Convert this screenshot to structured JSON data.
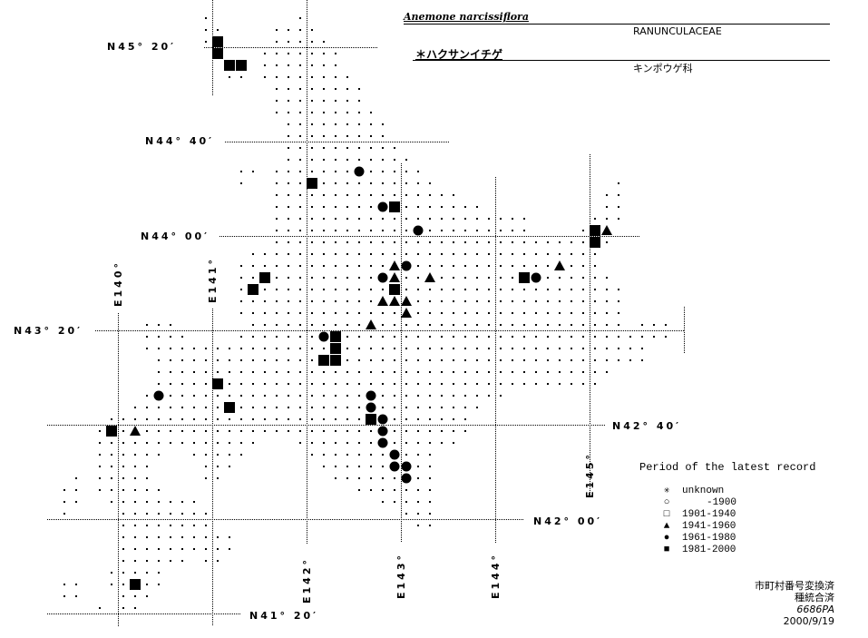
{
  "header": {
    "scientific_name": "Anemone narcissiflora",
    "family_latin": "RANUNCULACEAE",
    "japanese_name": "＊ハクサンイチゲ",
    "family_japanese": "キンポウゲ科"
  },
  "graticule": {
    "latitudes": [
      {
        "value": 45.3333,
        "label": "N45° 20′"
      },
      {
        "value": 44.6667,
        "label": "N44° 40′"
      },
      {
        "value": 44.0,
        "label": "N44° 00′"
      },
      {
        "value": 43.3333,
        "label": "N43° 20′"
      },
      {
        "value": 42.6667,
        "label": "N42° 40′"
      },
      {
        "value": 42.0,
        "label": "N42° 00′"
      },
      {
        "value": 41.3333,
        "label": "N41° 20′"
      }
    ],
    "longitudes": [
      {
        "value": 140,
        "label": "E140°"
      },
      {
        "value": 141,
        "label": "E141°"
      },
      {
        "value": 142,
        "label": "E142°"
      },
      {
        "value": 143,
        "label": "E143°"
      },
      {
        "value": 144,
        "label": "E144°"
      },
      {
        "value": 145,
        "label": "E145°"
      }
    ]
  },
  "legend": {
    "title": "Period of the latest record",
    "items": [
      {
        "symbol": "asterisk",
        "glyph": "✳",
        "label": "unknown"
      },
      {
        "symbol": "open-circle",
        "glyph": "○",
        "label": "-1900"
      },
      {
        "symbol": "open-square",
        "glyph": "□",
        "label": "1901-1940"
      },
      {
        "symbol": "filled-triangle",
        "glyph": "▲",
        "label": "1941-1960"
      },
      {
        "symbol": "filled-circle",
        "glyph": "●",
        "label": "1961-1980"
      },
      {
        "symbol": "filled-square",
        "glyph": "■",
        "label": "1981-2000"
      }
    ]
  },
  "footer": {
    "line1": "市町村番号変換済",
    "line2": "種統合済",
    "line3": "6686PA",
    "line4": "2000/9/19"
  },
  "chart_data": {
    "type": "scatter",
    "x_unit": "longitude (°E)",
    "y_unit": "latitude (°N)",
    "grid_mesh": [
      {
        "lat": 45.5417,
        "lon": [
          [
            140.9375,
            140.9375
          ],
          [
            141.9375,
            141.9375
          ]
        ]
      },
      {
        "lat": 45.4583,
        "lon": [
          [
            140.9375,
            141.0625
          ],
          [
            141.6875,
            142.0625
          ]
        ]
      },
      {
        "lat": 45.375,
        "lon": [
          [
            140.9375,
            141.0625
          ],
          [
            141.6875,
            142.1875
          ]
        ]
      },
      {
        "lat": 45.2917,
        "lon": [
          [
            141.0625,
            141.0625
          ],
          [
            141.5625,
            142.3125
          ]
        ]
      },
      {
        "lat": 45.2083,
        "lon": [
          [
            141.1875,
            141.3125
          ],
          [
            141.5625,
            142.3125
          ]
        ]
      },
      {
        "lat": 45.125,
        "lon": [
          [
            141.1875,
            141.3125
          ],
          [
            141.5625,
            142.4375
          ]
        ]
      },
      {
        "lat": 45.0417,
        "lon": [
          [
            141.6875,
            142.5625
          ]
        ]
      },
      {
        "lat": 44.9583,
        "lon": [
          [
            141.6875,
            142.5625
          ]
        ]
      },
      {
        "lat": 44.875,
        "lon": [
          [
            141.6875,
            142.6875
          ]
        ]
      },
      {
        "lat": 44.7917,
        "lon": [
          [
            141.8125,
            142.8125
          ]
        ]
      },
      {
        "lat": 44.7083,
        "lon": [
          [
            141.8125,
            142.8125
          ]
        ]
      },
      {
        "lat": 44.625,
        "lon": [
          [
            141.8125,
            142.9375
          ]
        ]
      },
      {
        "lat": 44.5417,
        "lon": [
          [
            141.8125,
            143.0625
          ]
        ]
      },
      {
        "lat": 44.4583,
        "lon": [
          [
            141.3125,
            141.4375
          ],
          [
            141.6875,
            143.1875
          ]
        ]
      },
      {
        "lat": 44.375,
        "lon": [
          [
            141.3125,
            141.3125
          ],
          [
            141.6875,
            143.3125
          ],
          [
            145.3125,
            145.3125
          ]
        ]
      },
      {
        "lat": 44.2917,
        "lon": [
          [
            141.6875,
            143.5625
          ],
          [
            145.1875,
            145.3125
          ]
        ]
      },
      {
        "lat": 44.2083,
        "lon": [
          [
            141.6875,
            143.8125
          ],
          [
            145.1875,
            145.3125
          ]
        ]
      },
      {
        "lat": 44.125,
        "lon": [
          [
            141.6875,
            144.3125
          ],
          [
            145.0625,
            145.3125
          ]
        ]
      },
      {
        "lat": 44.0417,
        "lon": [
          [
            141.6875,
            144.3125
          ],
          [
            144.9375,
            145.1875
          ]
        ]
      },
      {
        "lat": 43.9583,
        "lon": [
          [
            141.6875,
            145.1875
          ]
        ]
      },
      {
        "lat": 43.875,
        "lon": [
          [
            141.4375,
            145.0625
          ]
        ]
      },
      {
        "lat": 43.7917,
        "lon": [
          [
            141.3125,
            145.0625
          ]
        ]
      },
      {
        "lat": 43.7083,
        "lon": [
          [
            141.3125,
            145.1875
          ]
        ]
      },
      {
        "lat": 43.625,
        "lon": [
          [
            141.3125,
            145.3125
          ]
        ]
      },
      {
        "lat": 43.5417,
        "lon": [
          [
            141.3125,
            145.3125
          ]
        ]
      },
      {
        "lat": 43.4583,
        "lon": [
          [
            141.3125,
            145.3125
          ]
        ]
      },
      {
        "lat": 43.375,
        "lon": [
          [
            140.3125,
            140.5625
          ],
          [
            141.4375,
            145.3125
          ],
          [
            145.5625,
            145.8125
          ]
        ]
      },
      {
        "lat": 43.2917,
        "lon": [
          [
            140.3125,
            140.6875
          ],
          [
            141.3125,
            145.8125
          ]
        ]
      },
      {
        "lat": 43.2083,
        "lon": [
          [
            140.3125,
            145.5625
          ]
        ]
      },
      {
        "lat": 43.125,
        "lon": [
          [
            140.4375,
            145.5625
          ]
        ]
      },
      {
        "lat": 43.0417,
        "lon": [
          [
            140.4375,
            145.1875
          ]
        ]
      },
      {
        "lat": 42.9583,
        "lon": [
          [
            140.4375,
            145.0625
          ]
        ]
      },
      {
        "lat": 42.875,
        "lon": [
          [
            140.3125,
            144.0625
          ]
        ]
      },
      {
        "lat": 42.7917,
        "lon": [
          [
            140.1875,
            143.8125
          ]
        ]
      },
      {
        "lat": 42.7083,
        "lon": [
          [
            139.9375,
            143.6875
          ]
        ]
      },
      {
        "lat": 42.625,
        "lon": [
          [
            139.8125,
            143.6875
          ]
        ]
      },
      {
        "lat": 42.5417,
        "lon": [
          [
            139.8125,
            141.4375
          ],
          [
            141.9375,
            143.5625
          ]
        ]
      },
      {
        "lat": 42.4583,
        "lon": [
          [
            139.8125,
            140.4375
          ],
          [
            140.8125,
            141.3125
          ],
          [
            142.0625,
            143.3125
          ]
        ]
      },
      {
        "lat": 42.375,
        "lon": [
          [
            139.8125,
            140.3125
          ],
          [
            140.9375,
            141.1875
          ],
          [
            142.1875,
            143.3125
          ]
        ]
      },
      {
        "lat": 42.2917,
        "lon": [
          [
            139.5625,
            139.5625
          ],
          [
            139.8125,
            140.3125
          ],
          [
            140.9375,
            141.0625
          ],
          [
            142.3125,
            143.3125
          ]
        ]
      },
      {
        "lat": 42.2083,
        "lon": [
          [
            139.4375,
            139.5625
          ],
          [
            139.8125,
            140.4375
          ],
          [
            142.5625,
            143.3125
          ]
        ]
      },
      {
        "lat": 42.125,
        "lon": [
          [
            139.4375,
            139.5625
          ],
          [
            139.9375,
            140.8125
          ],
          [
            142.8125,
            143.3125
          ]
        ]
      },
      {
        "lat": 42.0417,
        "lon": [
          [
            139.4375,
            139.4375
          ],
          [
            140.0625,
            140.9375
          ],
          [
            143.0625,
            143.3125
          ]
        ]
      },
      {
        "lat": 41.9583,
        "lon": [
          [
            140.0625,
            140.9375
          ],
          [
            143.1875,
            143.3125
          ]
        ]
      },
      {
        "lat": 41.875,
        "lon": [
          [
            140.0625,
            141.1875
          ]
        ]
      },
      {
        "lat": 41.7917,
        "lon": [
          [
            140.0625,
            141.1875
          ]
        ]
      },
      {
        "lat": 41.7083,
        "lon": [
          [
            140.0625,
            140.6875
          ],
          [
            140.9375,
            141.0625
          ]
        ]
      },
      {
        "lat": 41.625,
        "lon": [
          [
            139.9375,
            140.4375
          ]
        ]
      },
      {
        "lat": 41.5417,
        "lon": [
          [
            139.4375,
            139.5625
          ],
          [
            139.9375,
            140.4375
          ]
        ]
      },
      {
        "lat": 41.4583,
        "lon": [
          [
            139.4375,
            139.5625
          ],
          [
            140.0625,
            140.3125
          ]
        ]
      },
      {
        "lat": 41.375,
        "lon": [
          [
            139.8125,
            139.8125
          ],
          [
            140.0625,
            140.1875
          ]
        ]
      }
    ],
    "records": [
      {
        "lon": 141.0625,
        "lat": 45.375,
        "period": "1981-2000"
      },
      {
        "lon": 141.0625,
        "lat": 45.2917,
        "period": "1981-2000"
      },
      {
        "lon": 141.1875,
        "lat": 45.2083,
        "period": "1981-2000"
      },
      {
        "lon": 141.3125,
        "lat": 45.2083,
        "period": "1981-2000"
      },
      {
        "lon": 142.0625,
        "lat": 44.375,
        "period": "1981-2000"
      },
      {
        "lon": 142.9375,
        "lat": 44.2083,
        "period": "1981-2000"
      },
      {
        "lon": 145.0625,
        "lat": 44.0417,
        "period": "1981-2000"
      },
      {
        "lon": 145.0625,
        "lat": 43.9583,
        "period": "1981-2000"
      },
      {
        "lon": 141.5625,
        "lat": 43.7083,
        "period": "1981-2000"
      },
      {
        "lon": 141.4375,
        "lat": 43.625,
        "period": "1981-2000"
      },
      {
        "lon": 142.9375,
        "lat": 43.625,
        "period": "1981-2000"
      },
      {
        "lon": 144.3125,
        "lat": 43.7083,
        "period": "1981-2000"
      },
      {
        "lon": 142.3125,
        "lat": 43.2917,
        "period": "1981-2000"
      },
      {
        "lon": 142.3125,
        "lat": 43.2083,
        "period": "1981-2000"
      },
      {
        "lon": 142.1875,
        "lat": 43.125,
        "period": "1981-2000"
      },
      {
        "lon": 142.3125,
        "lat": 43.125,
        "period": "1981-2000"
      },
      {
        "lon": 141.0625,
        "lat": 42.9583,
        "period": "1981-2000"
      },
      {
        "lon": 141.1875,
        "lat": 42.7917,
        "period": "1981-2000"
      },
      {
        "lon": 139.9375,
        "lat": 42.625,
        "period": "1981-2000"
      },
      {
        "lon": 142.6875,
        "lat": 42.7083,
        "period": "1981-2000"
      },
      {
        "lon": 140.1875,
        "lat": 41.5417,
        "period": "1981-2000"
      },
      {
        "lon": 142.5625,
        "lat": 44.4583,
        "period": "1961-1980"
      },
      {
        "lon": 142.8125,
        "lat": 44.2083,
        "period": "1961-1980"
      },
      {
        "lon": 143.1875,
        "lat": 44.0417,
        "period": "1961-1980"
      },
      {
        "lon": 143.0625,
        "lat": 43.7917,
        "period": "1961-1980"
      },
      {
        "lon": 142.8125,
        "lat": 43.7083,
        "period": "1961-1980"
      },
      {
        "lon": 144.4375,
        "lat": 43.7083,
        "period": "1961-1980"
      },
      {
        "lon": 142.1875,
        "lat": 43.2917,
        "period": "1961-1980"
      },
      {
        "lon": 140.4375,
        "lat": 42.875,
        "period": "1961-1980"
      },
      {
        "lon": 142.6875,
        "lat": 42.875,
        "period": "1961-1980"
      },
      {
        "lon": 142.6875,
        "lat": 42.7917,
        "period": "1961-1980"
      },
      {
        "lon": 142.8125,
        "lat": 42.7083,
        "period": "1961-1980"
      },
      {
        "lon": 142.8125,
        "lat": 42.625,
        "period": "1961-1980"
      },
      {
        "lon": 142.8125,
        "lat": 42.5417,
        "period": "1961-1980"
      },
      {
        "lon": 142.9375,
        "lat": 42.4583,
        "period": "1961-1980"
      },
      {
        "lon": 142.9375,
        "lat": 42.375,
        "period": "1961-1980"
      },
      {
        "lon": 143.0625,
        "lat": 42.375,
        "period": "1961-1980"
      },
      {
        "lon": 143.0625,
        "lat": 42.2917,
        "period": "1961-1980"
      },
      {
        "lon": 145.1875,
        "lat": 44.0417,
        "period": "1941-1960"
      },
      {
        "lon": 144.6875,
        "lat": 43.7917,
        "period": "1941-1960"
      },
      {
        "lon": 142.9375,
        "lat": 43.7917,
        "period": "1941-1960"
      },
      {
        "lon": 142.9375,
        "lat": 43.7083,
        "period": "1941-1960"
      },
      {
        "lon": 143.3125,
        "lat": 43.7083,
        "period": "1941-1960"
      },
      {
        "lon": 142.8125,
        "lat": 43.5417,
        "period": "1941-1960"
      },
      {
        "lon": 142.9375,
        "lat": 43.5417,
        "period": "1941-1960"
      },
      {
        "lon": 143.0625,
        "lat": 43.5417,
        "period": "1941-1960"
      },
      {
        "lon": 143.0625,
        "lat": 43.4583,
        "period": "1941-1960"
      },
      {
        "lon": 142.6875,
        "lat": 43.375,
        "period": "1941-1960"
      },
      {
        "lon": 140.1875,
        "lat": 42.625,
        "period": "1941-1960"
      }
    ]
  }
}
